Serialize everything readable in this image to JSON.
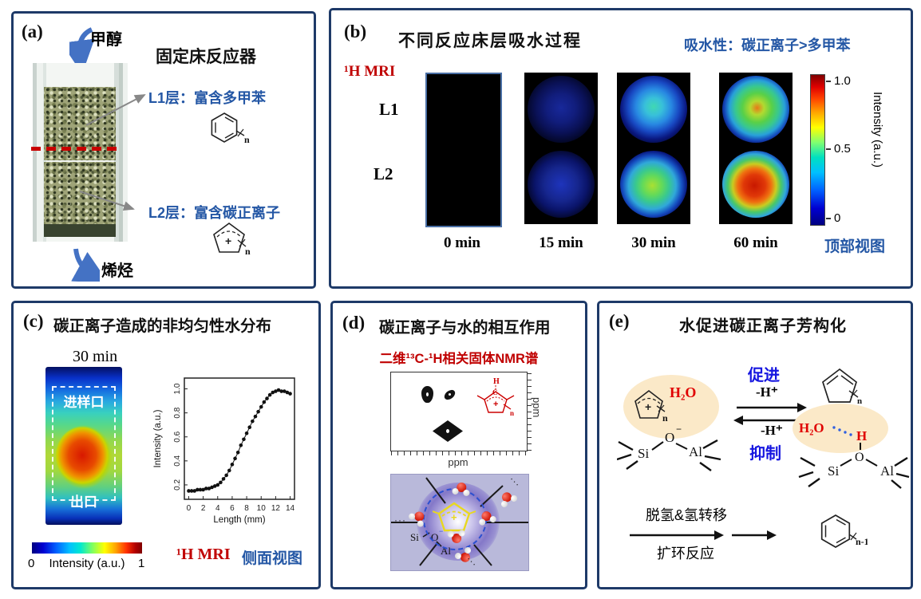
{
  "colors": {
    "panel_border": "#1e3a68",
    "blue_label": "#2457a5",
    "bright_blue": "#1616e0",
    "red_label": "#c00000",
    "h2o_red": "#e00000",
    "arrow_blue": "#4472c4",
    "tan_ellipse": "#fbe9c8",
    "lavender": "#b9b9da"
  },
  "panel_a": {
    "label": "(a)",
    "title": "固定床反应器",
    "inlet": "甲醇",
    "outlet": "烯烃",
    "l1_label": "L1层：富含多甲苯",
    "l2_label": "L2层：富含碳正离子",
    "benzene_n": "n",
    "cation_n": "n",
    "cation_plus": "+"
  },
  "panel_b": {
    "label": "(b)",
    "title": "不同反应床层吸水过程",
    "annotation": "吸水性：碳正离子>多甲苯",
    "technique": "¹H MRI",
    "row_labels": [
      "L1",
      "L2"
    ],
    "time_labels": [
      "0 min",
      "15 min",
      "30 min",
      "60 min"
    ],
    "colorbar": {
      "ticks": [
        "1.0",
        "0.5",
        "0"
      ],
      "label": "Intensity (a.u.)"
    },
    "view_label": "顶部视图"
  },
  "panel_c": {
    "label": "(c)",
    "title": "碳正离子造成的非均匀性水分布",
    "time_label": "30 min",
    "inlet_label": "进样口",
    "outlet_label": "出口",
    "colorbar": {
      "min": "0",
      "max": "1",
      "label": "Intensity (a.u.)"
    },
    "technique": "¹H MRI",
    "view_label": "侧面视图",
    "chart_data": {
      "type": "scatter",
      "title": "",
      "xlabel": "Length (mm)",
      "ylabel": "Intensity (a.u.)",
      "xlim": [
        -0.6,
        14.6
      ],
      "ylim": [
        0.08,
        1.09
      ],
      "xticks": [
        0,
        2,
        4,
        6,
        8,
        10,
        12,
        14
      ],
      "yticks": [
        0.2,
        0.4,
        0.6,
        0.8,
        1.0
      ],
      "x": [
        0,
        0.4,
        0.8,
        1.2,
        1.6,
        2.0,
        2.4,
        2.8,
        3.2,
        3.6,
        4.0,
        4.4,
        4.8,
        5.2,
        5.6,
        6.0,
        6.4,
        6.8,
        7.2,
        7.6,
        8.0,
        8.4,
        8.8,
        9.2,
        9.6,
        10.0,
        10.4,
        10.8,
        11.2,
        11.6,
        12.0,
        12.4,
        12.8,
        13.2,
        13.6,
        14.0
      ],
      "y": [
        0.15,
        0.15,
        0.15,
        0.16,
        0.16,
        0.16,
        0.17,
        0.17,
        0.18,
        0.19,
        0.2,
        0.22,
        0.25,
        0.28,
        0.32,
        0.37,
        0.42,
        0.47,
        0.53,
        0.58,
        0.63,
        0.68,
        0.73,
        0.77,
        0.81,
        0.85,
        0.89,
        0.92,
        0.95,
        0.97,
        0.98,
        0.99,
        0.98,
        0.98,
        0.97,
        0.96
      ]
    }
  },
  "panel_d": {
    "label": "(d)",
    "title": "碳正离子与水的相互作用",
    "subtitle": "二维¹³C-¹H相关固体NMR谱",
    "nmr_xlabel": "ppm",
    "nmr_ylabel": "ppm",
    "structure": {
      "h": "H",
      "c": "C",
      "plus": "+",
      "n": "n"
    },
    "zeolite": {
      "si": "Si",
      "o": "O",
      "minus": "−",
      "al": "Al",
      "plus": "+",
      "dots": "···"
    }
  },
  "panel_e": {
    "label": "(e)",
    "title": "水促进碳正离子芳构化",
    "promote": "促进",
    "inhibit": "抑制",
    "minus_h_top": "-H⁺",
    "minus_h_bottom": "-H⁺",
    "left": {
      "h2o": "H₂O",
      "plus": "+",
      "n": "n",
      "o": "O",
      "minus": "−",
      "si": "Si",
      "al": "Al"
    },
    "right": {
      "h2o": "H₂O",
      "h": "H",
      "n": "n",
      "o": "O",
      "si": "Si",
      "al": "Al"
    },
    "step_top": "脱氢&氢转移",
    "step_bottom": "扩环反应",
    "product_n": "n-1"
  }
}
